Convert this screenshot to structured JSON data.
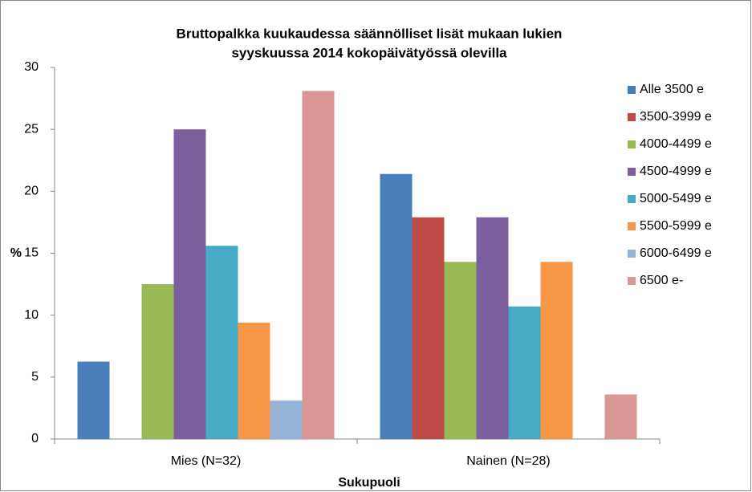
{
  "chart_data": {
    "type": "bar",
    "title": [
      "Bruttopalkka kuukaudessa säännölliset lisät mukaan lukien",
      "syyskuussa 2014 kokopäivätyössä olevilla"
    ],
    "xlabel": "Sukupuoli",
    "ylabel": "%",
    "categories": [
      "Mies (N=32)",
      "Nainen (N=28)"
    ],
    "series": [
      {
        "name": "Alle 3500 e",
        "color": "#4a7ebb",
        "values": [
          6.25,
          21.4
        ]
      },
      {
        "name": "3500-3999 e",
        "color": "#be4b48",
        "values": [
          0,
          17.9
        ]
      },
      {
        "name": "4000-4499 e",
        "color": "#98b954",
        "values": [
          12.5,
          14.3
        ]
      },
      {
        "name": "4500-4999 e",
        "color": "#7d5fa0",
        "values": [
          25,
          17.9
        ]
      },
      {
        "name": "5000-5499 e",
        "color": "#46aac5",
        "values": [
          15.6,
          10.7
        ]
      },
      {
        "name": "5500-5999 e",
        "color": "#f79646",
        "values": [
          9.4,
          14.3
        ]
      },
      {
        "name": "6000-6499 e",
        "color": "#95b3d7",
        "values": [
          3.1,
          0
        ]
      },
      {
        "name": "6500 e-",
        "color": "#d99694",
        "values": [
          28.1,
          3.6
        ]
      }
    ],
    "ylim": [
      0,
      30
    ],
    "yticks": [
      0,
      5,
      10,
      15,
      20,
      25,
      30
    ],
    "grid": false,
    "legend": "right"
  }
}
